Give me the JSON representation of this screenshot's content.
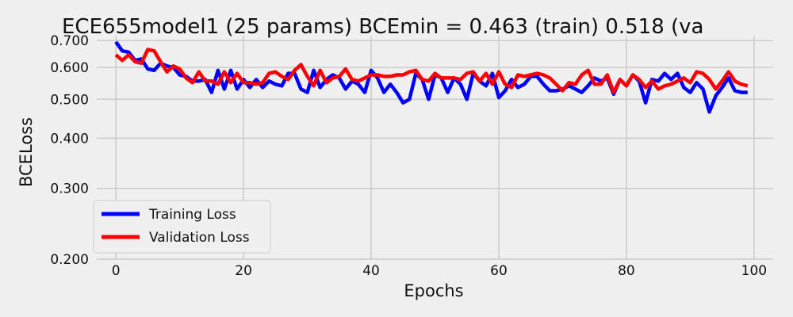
{
  "chart_data": {
    "type": "line",
    "title": "ECE655model1 (25 params)     BCEmin = 0.463 (train)   0.518 (va",
    "xlabel": "Epochs",
    "ylabel": "BCELoss",
    "xlim": [
      -3,
      103
    ],
    "ylim": [
      0.2,
      0.72
    ],
    "yscale": "log",
    "xticks": [
      0,
      20,
      40,
      60,
      80,
      100
    ],
    "xtick_labels": [
      "0",
      "20",
      "40",
      "60",
      "80",
      "100"
    ],
    "yticks": [
      0.2,
      0.3,
      0.4,
      0.5,
      0.6,
      0.7
    ],
    "ytick_labels": [
      "0.200",
      "0.300",
      "0.400",
      "0.500",
      "0.600",
      "0.700"
    ],
    "grid": true,
    "legend_position": "lower-left",
    "x": [
      0,
      1,
      2,
      3,
      4,
      5,
      6,
      7,
      8,
      9,
      10,
      11,
      12,
      13,
      14,
      15,
      16,
      17,
      18,
      19,
      20,
      21,
      22,
      23,
      24,
      25,
      26,
      27,
      28,
      29,
      30,
      31,
      32,
      33,
      34,
      35,
      36,
      37,
      38,
      39,
      40,
      41,
      42,
      43,
      44,
      45,
      46,
      47,
      48,
      49,
      50,
      51,
      52,
      53,
      54,
      55,
      56,
      57,
      58,
      59,
      60,
      61,
      62,
      63,
      64,
      65,
      66,
      67,
      68,
      69,
      70,
      71,
      72,
      73,
      74,
      75,
      76,
      77,
      78,
      79,
      80,
      81,
      82,
      83,
      84,
      85,
      86,
      87,
      88,
      89,
      90,
      91,
      92,
      93,
      94,
      95,
      96,
      97,
      98,
      99
    ],
    "series": [
      {
        "name": "Training Loss",
        "color": "#0000ff",
        "values": [
          0.695,
          0.66,
          0.655,
          0.625,
          0.63,
          0.595,
          0.59,
          0.615,
          0.605,
          0.6,
          0.575,
          0.57,
          0.555,
          0.555,
          0.56,
          0.52,
          0.59,
          0.53,
          0.59,
          0.53,
          0.56,
          0.535,
          0.56,
          0.535,
          0.555,
          0.545,
          0.54,
          0.58,
          0.58,
          0.53,
          0.52,
          0.59,
          0.535,
          0.56,
          0.575,
          0.565,
          0.53,
          0.555,
          0.545,
          0.52,
          0.59,
          0.565,
          0.52,
          0.545,
          0.52,
          0.49,
          0.5,
          0.58,
          0.56,
          0.5,
          0.575,
          0.565,
          0.52,
          0.565,
          0.545,
          0.5,
          0.58,
          0.555,
          0.54,
          0.58,
          0.505,
          0.525,
          0.56,
          0.535,
          0.545,
          0.57,
          0.57,
          0.545,
          0.525,
          0.525,
          0.53,
          0.54,
          0.53,
          0.52,
          0.54,
          0.565,
          0.555,
          0.565,
          0.515,
          0.56,
          0.54,
          0.575,
          0.555,
          0.49,
          0.56,
          0.555,
          0.58,
          0.56,
          0.58,
          0.535,
          0.52,
          0.55,
          0.53,
          0.465,
          0.51,
          0.535,
          0.565,
          0.525,
          0.52,
          0.52
        ]
      },
      {
        "name": "Validation Loss",
        "color": "#ff0000",
        "values": [
          0.645,
          0.625,
          0.645,
          0.62,
          0.615,
          0.665,
          0.66,
          0.62,
          0.585,
          0.605,
          0.595,
          0.565,
          0.55,
          0.585,
          0.555,
          0.555,
          0.545,
          0.585,
          0.55,
          0.58,
          0.55,
          0.55,
          0.545,
          0.55,
          0.58,
          0.585,
          0.57,
          0.56,
          0.59,
          0.61,
          0.57,
          0.54,
          0.59,
          0.55,
          0.565,
          0.57,
          0.595,
          0.56,
          0.555,
          0.565,
          0.575,
          0.575,
          0.57,
          0.57,
          0.575,
          0.575,
          0.585,
          0.59,
          0.56,
          0.555,
          0.58,
          0.565,
          0.565,
          0.565,
          0.56,
          0.58,
          0.585,
          0.555,
          0.58,
          0.545,
          0.585,
          0.545,
          0.535,
          0.575,
          0.57,
          0.575,
          0.58,
          0.575,
          0.565,
          0.545,
          0.525,
          0.55,
          0.545,
          0.575,
          0.59,
          0.545,
          0.545,
          0.575,
          0.52,
          0.56,
          0.54,
          0.575,
          0.56,
          0.535,
          0.555,
          0.53,
          0.54,
          0.545,
          0.555,
          0.565,
          0.55,
          0.585,
          0.58,
          0.56,
          0.53,
          0.555,
          0.585,
          0.555,
          0.545,
          0.54
        ]
      }
    ]
  }
}
